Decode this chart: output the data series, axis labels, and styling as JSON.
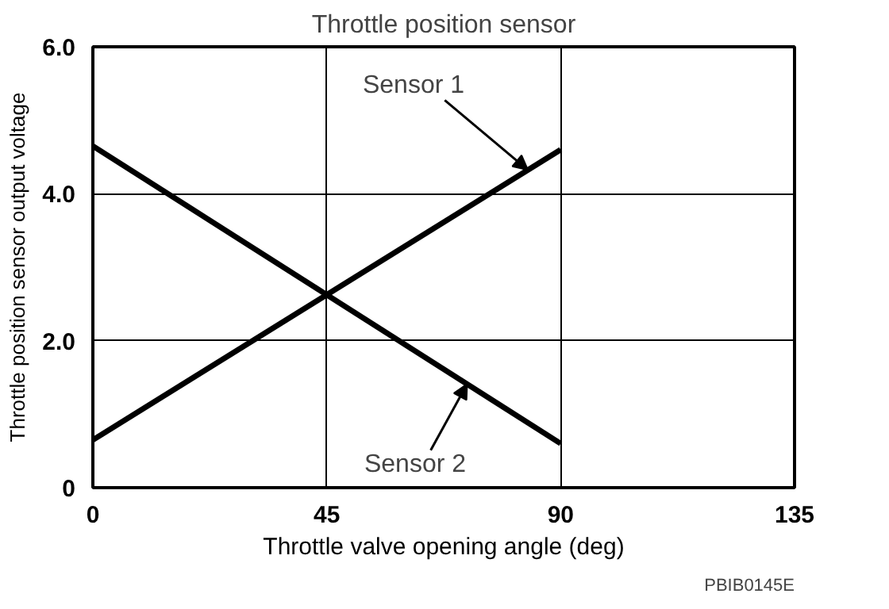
{
  "chart_data": {
    "type": "line",
    "title": "Throttle position sensor",
    "xlabel": "Throttle valve opening angle (deg)",
    "ylabel": "Throttle position sensor output voltage",
    "xlim": [
      0,
      135
    ],
    "ylim": [
      0,
      6
    ],
    "xticks": [
      0,
      45,
      90,
      135
    ],
    "yticks": [
      0,
      {
        "value": 2,
        "label": "2.0"
      },
      {
        "value": 4,
        "label": "4.0"
      },
      {
        "value": 6,
        "label": "6.0"
      }
    ],
    "grid": true,
    "line_style": "solid",
    "x": [
      0,
      90
    ],
    "series": [
      {
        "name": "Sensor 1",
        "color": "#000000",
        "values": [
          0.65,
          4.6
        ]
      },
      {
        "name": "Sensor 2",
        "color": "#000000",
        "values": [
          4.65,
          0.6
        ]
      }
    ],
    "annotations": [
      "PBIB0145E"
    ]
  }
}
